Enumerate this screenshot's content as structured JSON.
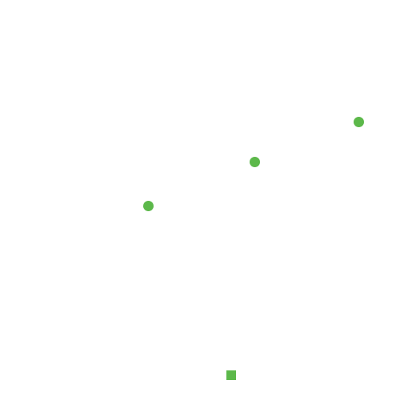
{
  "colors": {
    "background": "#ffffff",
    "accent": "#5cb84a"
  },
  "canvas": {
    "dots": [
      {
        "shape": "circle"
      },
      {
        "shape": "circle"
      },
      {
        "shape": "circle"
      }
    ],
    "marker": {
      "shape": "square"
    }
  }
}
